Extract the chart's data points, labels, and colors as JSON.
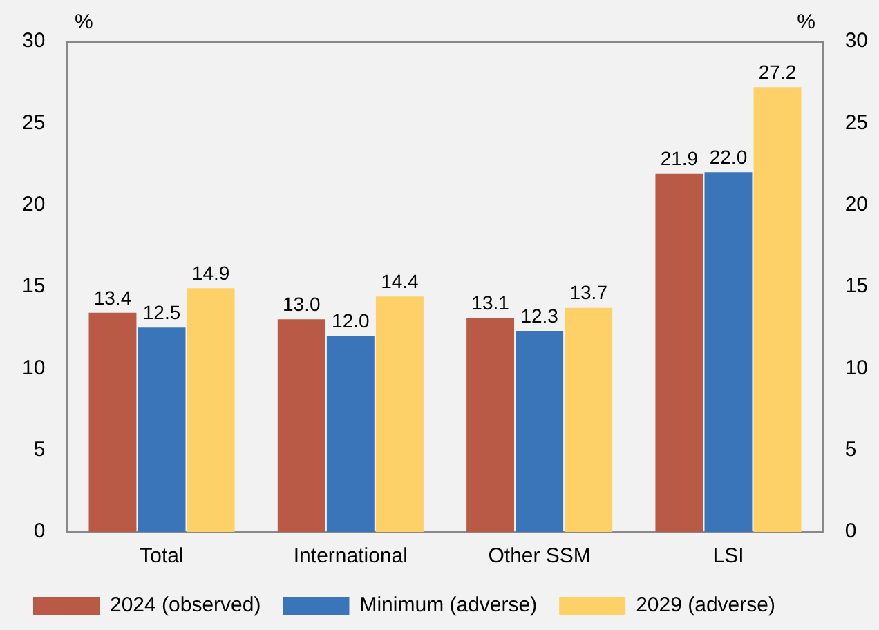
{
  "chart_data": {
    "type": "bar",
    "ylabel": "%",
    "y2label": "%",
    "categories": [
      "Total",
      "International",
      "Other SSM",
      "LSI"
    ],
    "series": [
      {
        "name": "2024 (observed)",
        "color": "#b85a46",
        "values": [
          13.4,
          13.0,
          13.1,
          21.9
        ],
        "value_labels": [
          "13.4",
          "13.0",
          "13.1",
          "21.9"
        ]
      },
      {
        "name": "Minimum (adverse)",
        "color": "#3a75b9",
        "values": [
          12.5,
          12.0,
          12.3,
          22.0
        ],
        "value_labels": [
          "12.5",
          "12.0",
          "12.3",
          "22.0"
        ]
      },
      {
        "name": "2029 (adverse)",
        "color": "#fdd068",
        "values": [
          14.9,
          14.4,
          13.7,
          27.2
        ],
        "value_labels": [
          "14.9",
          "14.4",
          "13.7",
          "27.2"
        ]
      }
    ],
    "ylim": [
      0,
      30
    ],
    "yticks": [
      0,
      5,
      10,
      15,
      20,
      25,
      30
    ],
    "y2lim": [
      0,
      30
    ],
    "y2ticks": [
      0,
      5,
      10,
      15,
      20,
      25,
      30
    ],
    "grid": false,
    "legend": "bottom"
  }
}
